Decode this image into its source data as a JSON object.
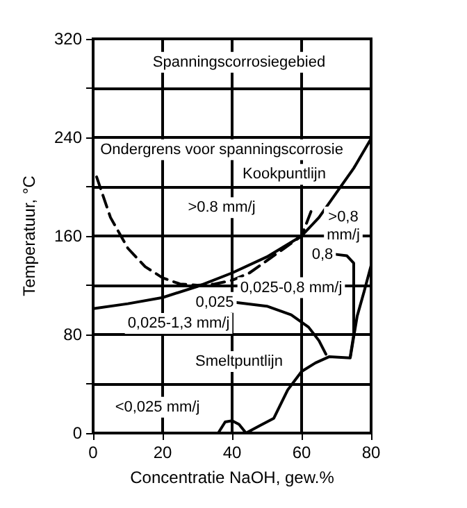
{
  "chart_data": {
    "type": "line",
    "xlabel": "Concentratie NaOH, gew.%",
    "ylabel": "Temperatuur, °C",
    "xlim": [
      0,
      80
    ],
    "xticks": [
      0,
      20,
      40,
      60,
      80
    ],
    "ylim": [
      0,
      320
    ],
    "yticks": [
      0,
      {
        "value": 40,
        "label": null
      },
      80,
      {
        "value": 120,
        "label": null
      },
      160,
      {
        "value": 200,
        "label": null
      },
      240,
      {
        "value": 280,
        "label": null
      },
      320
    ],
    "grid": true,
    "marker": "none",
    "line_style": "solid",
    "series": [
      {
        "color": "#000000",
        "x": [
          0,
          10,
          20,
          30,
          40,
          50,
          60,
          65,
          70,
          75,
          80
        ],
        "values": [
          101,
          105,
          110,
          119,
          130,
          143,
          160,
          175,
          195,
          215,
          239
        ]
      },
      {
        "color": "#000000",
        "line_style": "dashed",
        "x": [
          1,
          5,
          10,
          15,
          20,
          25,
          30,
          35,
          40,
          45,
          50,
          55,
          60,
          63
        ],
        "values": [
          208,
          175,
          150,
          135,
          126,
          121,
          120,
          121,
          124,
          130,
          140,
          150,
          160,
          182
        ]
      },
      {
        "color": "#000000",
        "x": [
          41,
          50,
          57,
          62,
          65,
          67
        ],
        "values": [
          106,
          103,
          96,
          86,
          75,
          64
        ]
      },
      {
        "color": "#000000",
        "x": [
          70,
          73,
          75,
          75,
          75,
          74
        ],
        "values": [
          145,
          144,
          138,
          110,
          80,
          62
        ]
      },
      {
        "color": "#000000",
        "x": [
          36,
          38,
          40,
          42,
          44,
          48,
          52,
          56,
          60,
          64,
          68,
          74,
          76,
          78,
          80
        ],
        "values": [
          0,
          9,
          10,
          7,
          0,
          6,
          12,
          35,
          50,
          57,
          62,
          61,
          95,
          115,
          136
        ]
      }
    ],
    "annotations": [
      "Spanningscorrosiegebied",
      "Ondergrens voor spanningscorrosie",
      "Kookpuntlijn",
      ">0.8 mm/j",
      ">0,8\nmm/j",
      "0,8",
      "0,025-0,8 mm/j",
      "0,025",
      "0,025-1,3 mm/j",
      "Smeltpuntlijn",
      "<0,025 mm/j"
    ]
  }
}
